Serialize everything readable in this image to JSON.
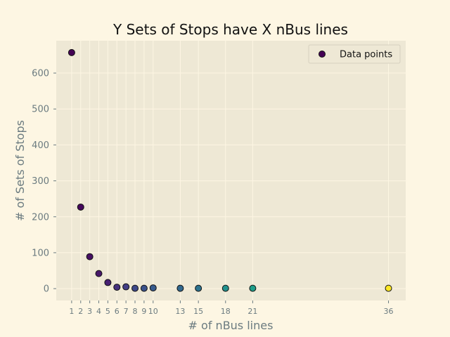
{
  "chart_data": {
    "type": "scatter",
    "title": "Y Sets of Stops have X nBus lines",
    "xlabel": "# of nBus lines",
    "ylabel": "# of Sets of Stops",
    "x_ticks": [
      1,
      2,
      3,
      4,
      5,
      6,
      7,
      8,
      9,
      10,
      13,
      15,
      18,
      21,
      36
    ],
    "y_ticks": [
      0,
      100,
      200,
      300,
      400,
      500,
      600
    ],
    "xlim": [
      -0.7,
      37.9
    ],
    "ylim": [
      -33,
      690
    ],
    "grid": true,
    "legend": {
      "label": "Data points",
      "placement": "top-right"
    },
    "colormap": "viridis",
    "series": [
      {
        "name": "Data points",
        "x": [
          1,
          2,
          3,
          4,
          5,
          6,
          7,
          8,
          9,
          10,
          13,
          15,
          18,
          21,
          36
        ],
        "y": [
          657,
          227,
          89,
          42,
          17,
          4,
          5,
          1,
          1,
          2,
          1,
          1,
          1,
          1,
          1
        ],
        "colors": [
          "#440154",
          "#46085c",
          "#471063",
          "#48186a",
          "#482173",
          "#46327e",
          "#433e85",
          "#3e4989",
          "#3b528b",
          "#375b8d",
          "#31688e",
          "#2c728e",
          "#21918c",
          "#1f9e89",
          "#fde725"
        ]
      }
    ]
  }
}
